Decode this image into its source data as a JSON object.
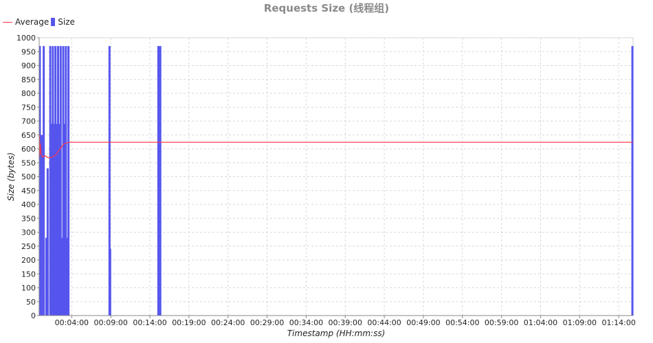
{
  "chart_data": {
    "type": "bar",
    "title": "Requests Size (线程组)",
    "xlabel": "Timestamp (HH:mm:ss)",
    "ylabel": "Size (bytes)",
    "ylim": [
      0,
      1000
    ],
    "yticks": [
      0,
      50,
      100,
      150,
      200,
      250,
      300,
      350,
      400,
      450,
      500,
      550,
      600,
      650,
      700,
      750,
      800,
      850,
      900,
      950,
      1000
    ],
    "xlim": [
      "23:59:50",
      "01:15:50"
    ],
    "xticks": [
      "00:04:00",
      "00:09:00",
      "00:14:00",
      "00:19:00",
      "00:24:00",
      "00:29:00",
      "00:34:00",
      "00:39:00",
      "00:44:00",
      "00:49:00",
      "00:54:00",
      "00:59:00",
      "01:04:00",
      "01:09:00",
      "01:14:00"
    ],
    "grid": true,
    "legend_position": "top-left",
    "colors": {
      "average": "#ff3344",
      "size": "#5555ee"
    },
    "series": [
      {
        "name": "Average",
        "type": "line",
        "points": [
          [
            "23:59:50",
            565
          ],
          [
            "23:59:52",
            650
          ],
          [
            "23:59:55",
            580
          ],
          [
            "23:59:58",
            620
          ],
          [
            "00:00:05",
            580
          ],
          [
            "00:00:15",
            570
          ],
          [
            "00:00:35",
            575
          ],
          [
            "00:01:00",
            568
          ],
          [
            "00:01:30",
            570
          ],
          [
            "00:02:00",
            580
          ],
          [
            "00:02:30",
            600
          ],
          [
            "00:03:00",
            618
          ],
          [
            "00:03:40",
            624
          ],
          [
            "01:15:50",
            624
          ]
        ]
      },
      {
        "name": "Size",
        "type": "bar",
        "points": [
          [
            "23:59:55",
            970
          ],
          [
            "00:00:10",
            650
          ],
          [
            "00:00:25",
            970
          ],
          [
            "00:00:45",
            280
          ],
          [
            "00:00:55",
            530
          ],
          [
            "00:01:15",
            970
          ],
          [
            "00:01:25",
            690
          ],
          [
            "00:01:35",
            970
          ],
          [
            "00:01:45",
            690
          ],
          [
            "00:01:55",
            970
          ],
          [
            "00:02:05",
            690
          ],
          [
            "00:02:15",
            970
          ],
          [
            "00:02:25",
            690
          ],
          [
            "00:02:35",
            970
          ],
          [
            "00:02:45",
            280
          ],
          [
            "00:02:55",
            970
          ],
          [
            "00:03:05",
            690
          ],
          [
            "00:03:15",
            970
          ],
          [
            "00:03:25",
            280
          ],
          [
            "00:03:35",
            970
          ],
          [
            "00:08:50",
            970
          ],
          [
            "00:08:55",
            240
          ],
          [
            "00:15:05",
            970
          ],
          [
            "00:15:20",
            970
          ],
          [
            "01:15:45",
            970
          ]
        ]
      }
    ]
  }
}
